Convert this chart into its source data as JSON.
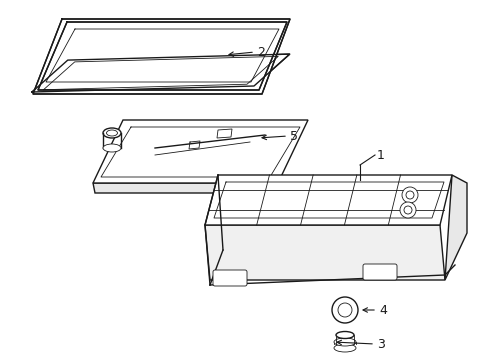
{
  "background_color": "#ffffff",
  "line_color": "#1a1a1a",
  "line_width": 1.0,
  "thin_lw": 0.6,
  "label_fontsize": 9,
  "labels": [
    "1",
    "2",
    "3",
    "4",
    "5"
  ],
  "fig_w": 4.89,
  "fig_h": 3.6
}
